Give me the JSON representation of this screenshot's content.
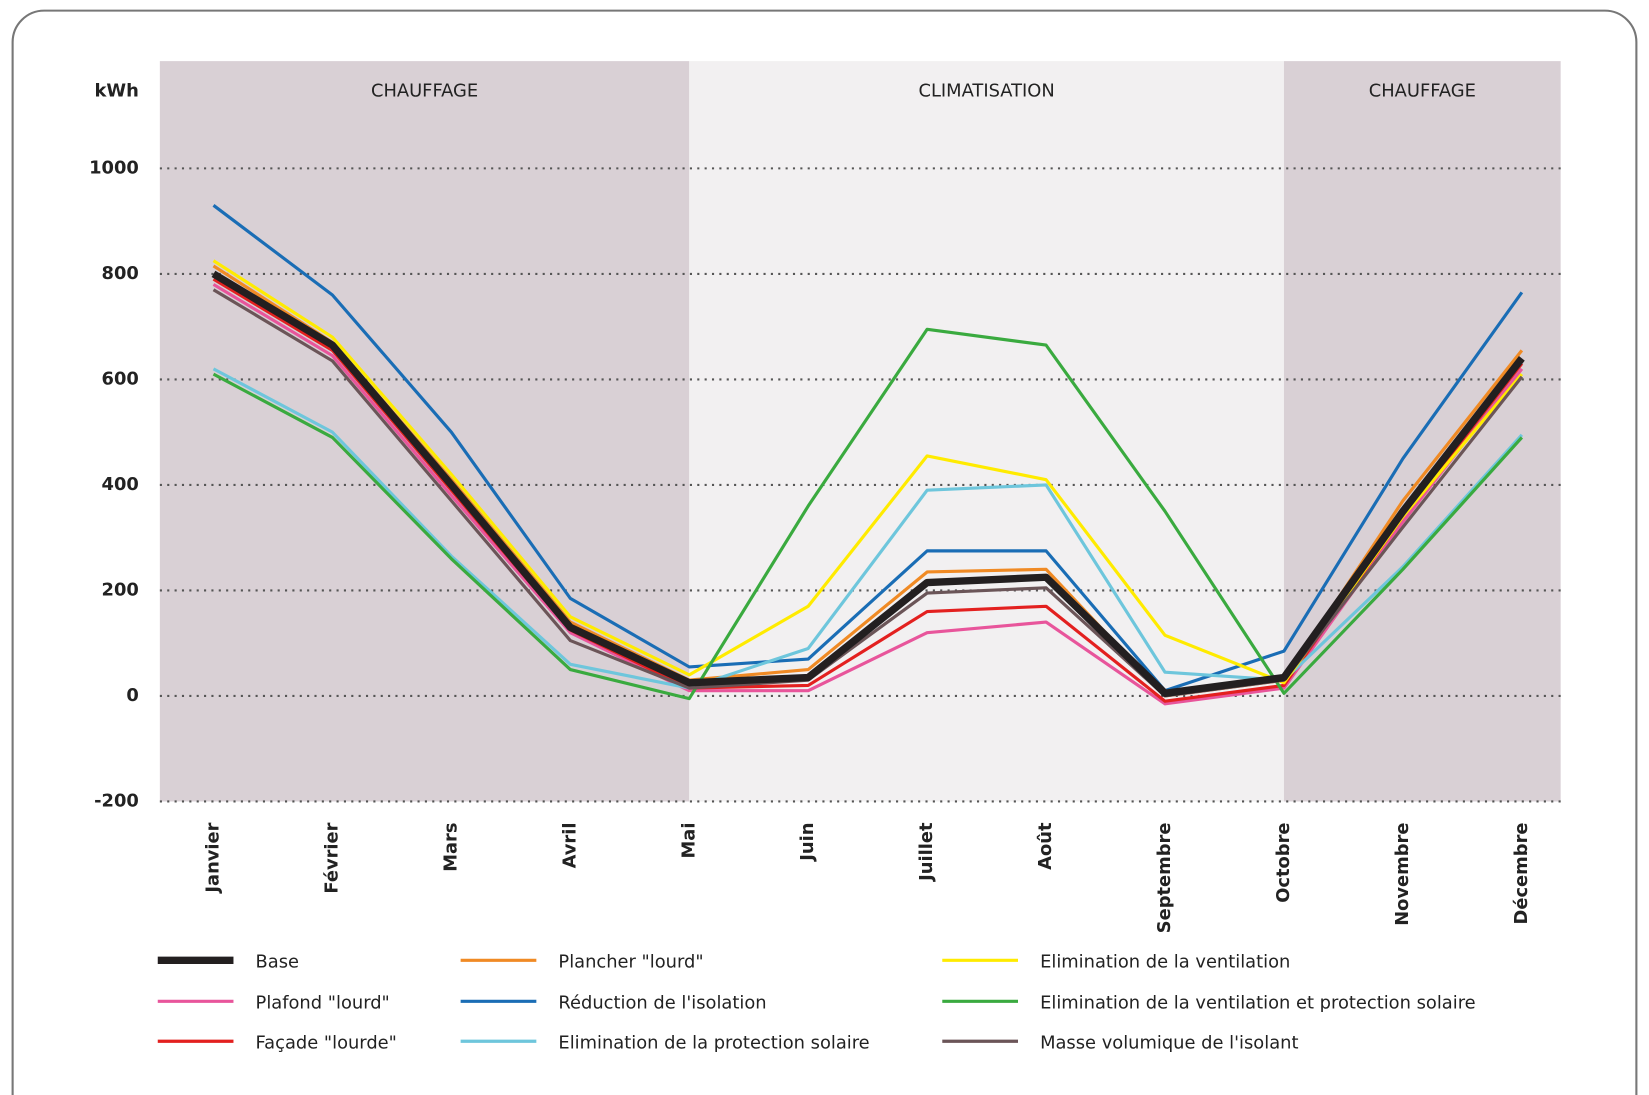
{
  "chart_data": {
    "type": "line",
    "y_label": "kWh",
    "bands": [
      "CHAUFFAGE",
      "CLIMATISATION",
      "CHAUFFAGE"
    ],
    "categories": [
      "Janvier",
      "Février",
      "Mars",
      "Avril",
      "Mai",
      "Juin",
      "Juillet",
      "Août",
      "Septembre",
      "Octobre",
      "Novembre",
      "Décembre"
    ],
    "ylim": [
      -200,
      1000
    ],
    "yticks": [
      -200,
      0,
      200,
      400,
      600,
      800,
      1000
    ],
    "grid": true,
    "series": [
      {
        "name": "Base",
        "color": "#231f20",
        "values": [
          800,
          665,
          400,
          130,
          25,
          35,
          215,
          225,
          5,
          35,
          350,
          640
        ]
      },
      {
        "name": "Plafond \"lourd\"",
        "color": "#e8559b",
        "values": [
          780,
          645,
          380,
          120,
          10,
          10,
          120,
          140,
          -15,
          15,
          330,
          620
        ]
      },
      {
        "name": "Façade \"lourde\"",
        "color": "#e3201f",
        "values": [
          790,
          655,
          390,
          125,
          15,
          20,
          160,
          170,
          -10,
          20,
          340,
          630
        ]
      },
      {
        "name": "Plancher \"lourd\"",
        "color": "#f08a24",
        "values": [
          815,
          670,
          410,
          140,
          30,
          50,
          235,
          240,
          0,
          30,
          370,
          655
        ]
      },
      {
        "name": "Réduction de l'isolation",
        "color": "#1a6db5",
        "values": [
          930,
          760,
          500,
          185,
          55,
          70,
          275,
          275,
          10,
          85,
          450,
          765
        ]
      },
      {
        "name": "Elimination de la protection solaire",
        "color": "#6ec6dc",
        "values": [
          620,
          500,
          265,
          60,
          15,
          90,
          390,
          400,
          45,
          30,
          245,
          495
        ]
      },
      {
        "name": "Elimination de la ventilation",
        "color": "#ffeb00",
        "values": [
          825,
          680,
          420,
          150,
          40,
          170,
          455,
          410,
          115,
          25,
          340,
          610
        ]
      },
      {
        "name": "Elimination de la ventilation et protection solaire",
        "color": "#3aaa3f",
        "values": [
          610,
          490,
          260,
          50,
          -5,
          360,
          695,
          665,
          350,
          5,
          240,
          490
        ]
      },
      {
        "name": "Masse volumique de l'isolant",
        "color": "#6b5558",
        "values": [
          770,
          635,
          370,
          105,
          15,
          30,
          195,
          205,
          0,
          30,
          320,
          605
        ]
      }
    ]
  }
}
